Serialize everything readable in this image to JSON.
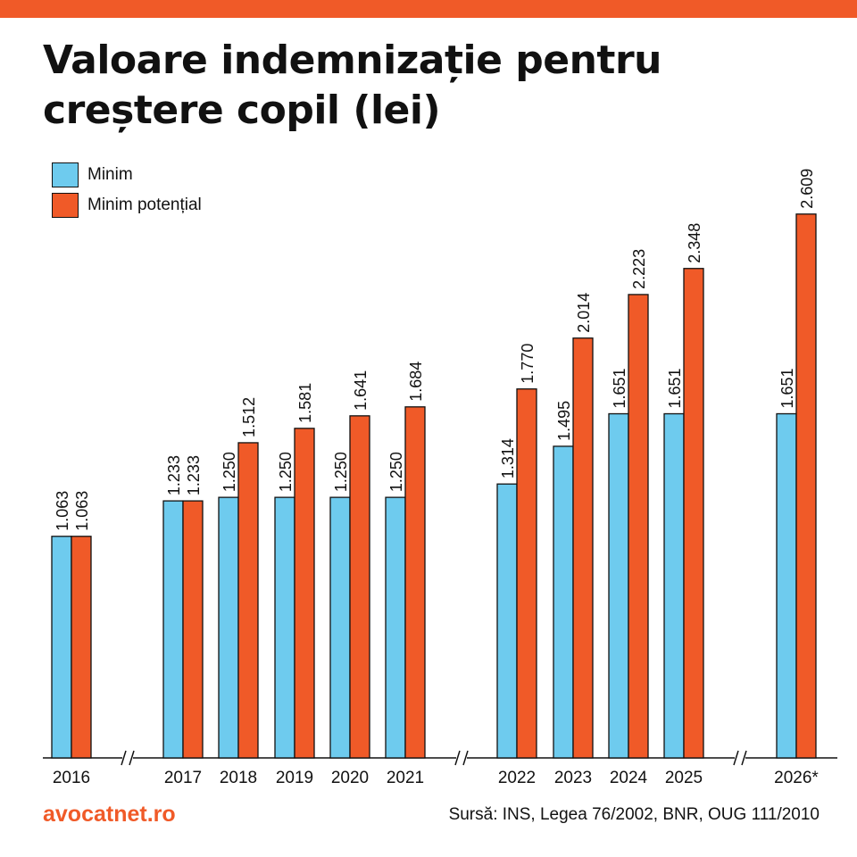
{
  "title": "Valoare indemnizație pentru creștere copil (lei)",
  "colors": {
    "accent": "#F05A28",
    "minim": "#6ECBEE",
    "minim_potential": "#F05A28",
    "outline": "#111111"
  },
  "legend": [
    {
      "label": "Minim",
      "color": "#6ECBEE"
    },
    {
      "label": "Minim potențial",
      "color": "#F05A28"
    }
  ],
  "chart_data": {
    "type": "bar",
    "title": "Valoare indemnizație pentru creștere copil (lei)",
    "categories": [
      "2016",
      "2017",
      "2018",
      "2019",
      "2020",
      "2021",
      "2022",
      "2023",
      "2024",
      "2025",
      "2026*"
    ],
    "axis_breaks_after": [
      "2016",
      "2021",
      "2025"
    ],
    "series": [
      {
        "name": "Minim",
        "values": [
          1063,
          1233,
          1250,
          1250,
          1250,
          1250,
          1314,
          1495,
          1651,
          1651,
          1651
        ],
        "labels": [
          "1.063",
          "1.233",
          "1.250",
          "1.250",
          "1.250",
          "1.250",
          "1.314",
          "1.495",
          "1.651",
          "1.651",
          "1.651"
        ]
      },
      {
        "name": "Minim potențial",
        "values": [
          1063,
          1233,
          1512,
          1581,
          1641,
          1684,
          1770,
          2014,
          2223,
          2348,
          2609
        ],
        "labels": [
          "1.063",
          "1.233",
          "1.512",
          "1.581",
          "1.641",
          "1.684",
          "1.770",
          "2.014",
          "2.223",
          "2.348",
          "2.609"
        ]
      }
    ],
    "ylim": [
      0,
      2900
    ],
    "grid": false,
    "legend_position": "top-left"
  },
  "footer": {
    "brand": "avocatnet.ro",
    "source": "Sursă: INS, Legea 76/2002, BNR, OUG 111/2010"
  }
}
